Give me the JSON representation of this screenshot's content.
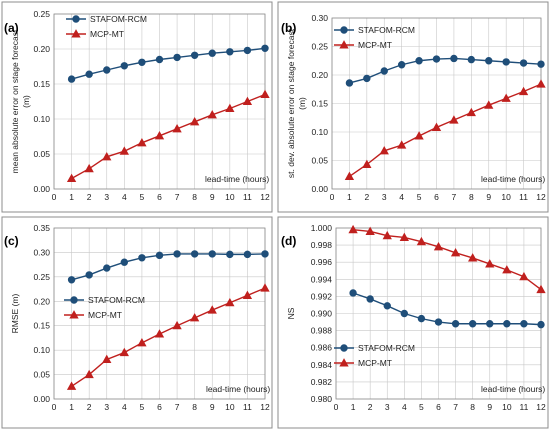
{
  "colors": {
    "stafom": "#1f4e79",
    "mcp": "#c0201e"
  },
  "chart_data": [
    {
      "type": "line",
      "panel_label": "(a)",
      "ylabel": "mean absolute error on stage forecast (m)",
      "xlabel": "lead-time (hours)",
      "x": [
        1,
        2,
        3,
        4,
        5,
        6,
        7,
        8,
        9,
        10,
        11,
        12
      ],
      "xlim": [
        0,
        12
      ],
      "ylim": [
        0,
        0.25
      ],
      "yticks": [
        "0.00",
        "0.05",
        "0.10",
        "0.15",
        "0.20",
        "0.25"
      ],
      "legend_position": "top-left",
      "series": [
        {
          "name": "STAFOM-RCM",
          "marker": "circle",
          "values": [
            0.157,
            0.164,
            0.17,
            0.176,
            0.181,
            0.185,
            0.188,
            0.191,
            0.194,
            0.196,
            0.198,
            0.201
          ]
        },
        {
          "name": "MCP-MT",
          "marker": "triangle",
          "values": [
            0.015,
            0.029,
            0.046,
            0.054,
            0.066,
            0.076,
            0.086,
            0.096,
            0.106,
            0.115,
            0.125,
            0.135
          ]
        }
      ]
    },
    {
      "type": "line",
      "panel_label": "(b)",
      "ylabel": "st. dev. absolute error on stage forecast (m)",
      "xlabel": "lead-time (hours)",
      "x": [
        1,
        2,
        3,
        4,
        5,
        6,
        7,
        8,
        9,
        10,
        11,
        12
      ],
      "xlim": [
        0,
        12
      ],
      "ylim": [
        0,
        0.3
      ],
      "yticks": [
        "0.00",
        "0.05",
        "0.10",
        "0.15",
        "0.20",
        "0.25",
        "0.30"
      ],
      "legend_position": "top-left",
      "series": [
        {
          "name": "STAFOM-RCM",
          "marker": "circle",
          "values": [
            0.186,
            0.194,
            0.207,
            0.218,
            0.225,
            0.228,
            0.229,
            0.227,
            0.225,
            0.223,
            0.221,
            0.219
          ]
        },
        {
          "name": "MCP-MT",
          "marker": "triangle",
          "values": [
            0.022,
            0.043,
            0.067,
            0.077,
            0.093,
            0.108,
            0.121,
            0.134,
            0.147,
            0.159,
            0.171,
            0.184
          ]
        }
      ]
    },
    {
      "type": "line",
      "panel_label": "(c)",
      "ylabel": "RMSE (m)",
      "xlabel": "lead-time (hours)",
      "x": [
        1,
        2,
        3,
        4,
        5,
        6,
        7,
        8,
        9,
        10,
        11,
        12
      ],
      "xlim": [
        0,
        12
      ],
      "ylim": [
        0,
        0.35
      ],
      "yticks": [
        "0.00",
        "0.05",
        "0.10",
        "0.15",
        "0.20",
        "0.25",
        "0.30",
        "0.35"
      ],
      "legend_position": "center-left",
      "series": [
        {
          "name": "STAFOM-RCM",
          "marker": "circle",
          "values": [
            0.244,
            0.254,
            0.268,
            0.28,
            0.289,
            0.294,
            0.297,
            0.297,
            0.297,
            0.296,
            0.296,
            0.297
          ]
        },
        {
          "name": "MCP-MT",
          "marker": "triangle",
          "values": [
            0.026,
            0.05,
            0.081,
            0.095,
            0.115,
            0.133,
            0.15,
            0.166,
            0.182,
            0.197,
            0.212,
            0.227
          ]
        }
      ]
    },
    {
      "type": "line",
      "panel_label": "(d)",
      "ylabel": "NS",
      "xlabel": "lead-time (hours)",
      "x": [
        1,
        2,
        3,
        4,
        5,
        6,
        7,
        8,
        9,
        10,
        11,
        12
      ],
      "xlim": [
        0,
        12
      ],
      "ylim": [
        0.98,
        1.0
      ],
      "yticks": [
        "0.980",
        "0.982",
        "0.984",
        "0.986",
        "0.988",
        "0.990",
        "0.992",
        "0.994",
        "0.996",
        "0.998",
        "1.000"
      ],
      "legend_position": "lower-left",
      "series": [
        {
          "name": "STAFOM-RCM",
          "marker": "circle",
          "values": [
            0.9924,
            0.9917,
            0.9909,
            0.99,
            0.9894,
            0.989,
            0.9888,
            0.9888,
            0.9888,
            0.9888,
            0.9888,
            0.9887
          ]
        },
        {
          "name": "MCP-MT",
          "marker": "triangle",
          "values": [
            0.9998,
            0.9996,
            0.9991,
            0.9989,
            0.9984,
            0.9978,
            0.9971,
            0.9965,
            0.9958,
            0.9951,
            0.9943,
            0.9928
          ]
        }
      ]
    }
  ]
}
